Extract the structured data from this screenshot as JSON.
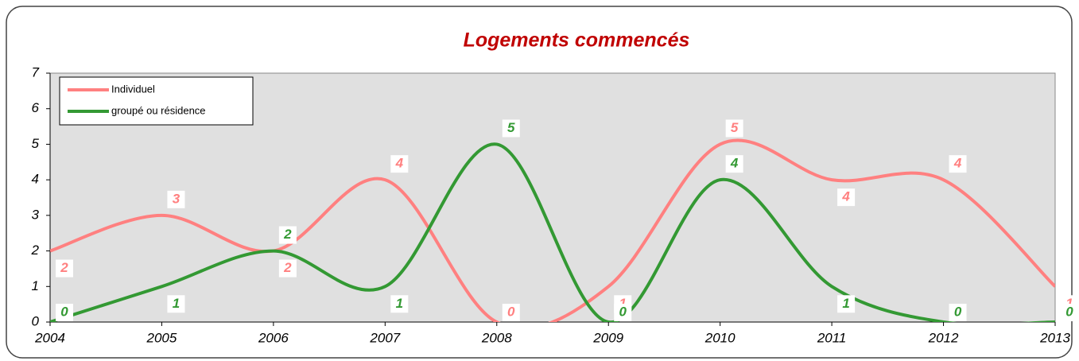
{
  "chart_data": {
    "type": "line",
    "title": "Logements commencés",
    "x": [
      2004,
      2005,
      2006,
      2007,
      2008,
      2009,
      2010,
      2011,
      2012,
      2013
    ],
    "series": [
      {
        "name": "Individuel",
        "color": "#ff8080",
        "values": [
          2,
          3,
          2,
          4,
          0,
          1,
          5,
          4,
          4,
          1
        ]
      },
      {
        "name": "groupé ou résidence",
        "color": "#339933",
        "values": [
          0,
          1,
          2,
          1,
          5,
          0,
          4,
          1,
          0,
          0
        ]
      }
    ],
    "xlim": [
      2004,
      2013
    ],
    "xticks": [
      2004,
      2005,
      2006,
      2007,
      2008,
      2009,
      2010,
      2011,
      2012,
      2013
    ],
    "ylim": [
      0,
      7
    ],
    "yticks": [
      0,
      1,
      2,
      3,
      4,
      5,
      6,
      7
    ],
    "smooth": true,
    "legend": "upper left",
    "plot_background": "#e0e0e0"
  }
}
